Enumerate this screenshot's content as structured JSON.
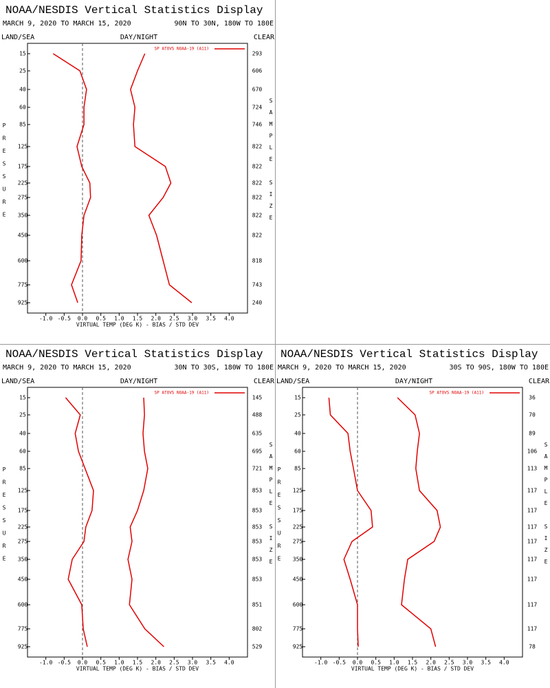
{
  "chart_data": [
    {
      "type": "line",
      "title": "NOAA/NESDIS Vertical Statistics Display",
      "subtitle": "MARCH 9, 2020 TO MARCH 15, 2020",
      "region": "90N TO 30N, 180W TO 180E",
      "land_sea": "LAND/SEA",
      "day_night": "DAY/NIGHT",
      "clear": "CLEAR",
      "ylabel": "PRESSURE",
      "y2label": "SAMPLE SIZE",
      "xlabel": "VIRTUAL TEMP (DEG K) - BIAS / STD DEV",
      "categories": [
        15,
        25,
        40,
        60,
        85,
        125,
        175,
        225,
        275,
        350,
        450,
        600,
        775,
        925
      ],
      "sample_size": [
        293,
        606,
        670,
        724,
        746,
        822,
        822,
        822,
        822,
        822,
        822,
        818,
        743,
        240
      ],
      "series": [
        {
          "name": "SP ATOVS NOAA-19 (A11)",
          "color": "#e00000",
          "bias": [
            -0.8,
            -0.07,
            0.11,
            0.04,
            0.04,
            -0.15,
            -0.02,
            0.2,
            0.22,
            0.04,
            -0.02,
            -0.04,
            -0.3,
            -0.13
          ],
          "std_dev": [
            1.7,
            1.5,
            1.31,
            1.43,
            1.39,
            1.43,
            2.26,
            2.41,
            2.2,
            1.81,
            2.02,
            2.2,
            2.37,
            2.98
          ]
        }
      ],
      "xlim": [
        -1.5,
        4.5
      ],
      "xticks": [
        {
          "value": -1,
          "label": "-1.0"
        },
        -0.5,
        {
          "value": 0,
          "label": "0.0"
        },
        0.5,
        {
          "value": 1,
          "label": "1.0"
        },
        1.5,
        {
          "value": 2,
          "label": "2.0"
        },
        2.5,
        {
          "value": 3,
          "label": "3.0"
        },
        3.5,
        {
          "value": 4,
          "label": "4.0"
        }
      ]
    },
    {
      "type": "line",
      "title": "NOAA/NESDIS Vertical Statistics Display",
      "subtitle": "MARCH 9, 2020 TO MARCH 15, 2020",
      "region": "30N TO 30S, 180W TO 180E",
      "land_sea": "LAND/SEA",
      "day_night": "DAY/NIGHT",
      "clear": "CLEAR",
      "ylabel": "PRESSURE",
      "y2label": "SAMPLE SIZE",
      "xlabel": "VIRTUAL TEMP (DEG K) - BIAS / STD DEV",
      "categories": [
        15,
        25,
        40,
        60,
        85,
        125,
        175,
        225,
        275,
        350,
        450,
        600,
        775,
        925
      ],
      "sample_size": [
        145,
        488,
        635,
        695,
        721,
        853,
        853,
        853,
        853,
        853,
        853,
        851,
        802,
        529
      ],
      "series": [
        {
          "name": "SP ATOVS NOAA-19 (A11)",
          "color": "#e00000",
          "bias": [
            -0.46,
            -0.06,
            -0.2,
            -0.11,
            0.07,
            0.3,
            0.26,
            0.09,
            0.04,
            -0.28,
            -0.39,
            -0.02,
            0.02,
            0.13
          ],
          "std_dev": [
            1.67,
            1.69,
            1.65,
            1.69,
            1.78,
            1.67,
            1.5,
            1.3,
            1.35,
            1.24,
            1.35,
            1.28,
            1.7,
            2.22
          ]
        }
      ],
      "xlim": [
        -1.5,
        4.5
      ],
      "xticks": [
        {
          "value": -1,
          "label": "-1.0"
        },
        -0.5,
        {
          "value": 0,
          "label": "0.0"
        },
        0.5,
        {
          "value": 1,
          "label": "1.0"
        },
        1.5,
        {
          "value": 2,
          "label": "2.0"
        },
        2.5,
        {
          "value": 3,
          "label": "3.0"
        },
        3.5,
        {
          "value": 4,
          "label": "4.0"
        }
      ]
    },
    {
      "type": "line",
      "title": "NOAA/NESDIS Vertical Statistics Display",
      "subtitle": "MARCH 9, 2020 TO MARCH 15, 2020",
      "region": "30S TO 90S, 180W TO 180E",
      "land_sea": "LAND/SEA",
      "day_night": "DAY/NIGHT",
      "clear": "CLEAR",
      "ylabel": "PRESSURE",
      "y2label": "SAMPLE SIZE",
      "xlabel": "VIRTUAL TEMP (DEG K) - BIAS / STD DEV",
      "categories": [
        15,
        25,
        40,
        60,
        85,
        125,
        175,
        225,
        275,
        350,
        450,
        600,
        775,
        925
      ],
      "sample_size": [
        36,
        70,
        89,
        106,
        113,
        117,
        117,
        117,
        117,
        117,
        117,
        117,
        117,
        78
      ],
      "series": [
        {
          "name": "SP ATOVS NOAA-19 (A11)",
          "color": "#e00000",
          "bias": [
            -0.78,
            -0.74,
            -0.26,
            -0.2,
            -0.11,
            0.0,
            0.37,
            0.41,
            -0.15,
            -0.37,
            -0.2,
            0.0,
            0.0,
            0.02
          ],
          "std_dev": [
            1.09,
            1.57,
            1.69,
            1.63,
            1.59,
            1.69,
            2.17,
            2.26,
            2.09,
            1.37,
            1.28,
            1.2,
            2.0,
            2.13
          ]
        }
      ],
      "xlim": [
        -1.5,
        4.5
      ],
      "xticks": [
        {
          "value": -1,
          "label": "-1.0"
        },
        -0.5,
        {
          "value": 0,
          "label": "0.0"
        },
        0.5,
        {
          "value": 1,
          "label": "1.0"
        },
        1.5,
        {
          "value": 2,
          "label": "2.0"
        },
        2.5,
        {
          "value": 3,
          "label": "3.0"
        },
        3.5,
        {
          "value": 4,
          "label": "4.0"
        }
      ]
    }
  ]
}
